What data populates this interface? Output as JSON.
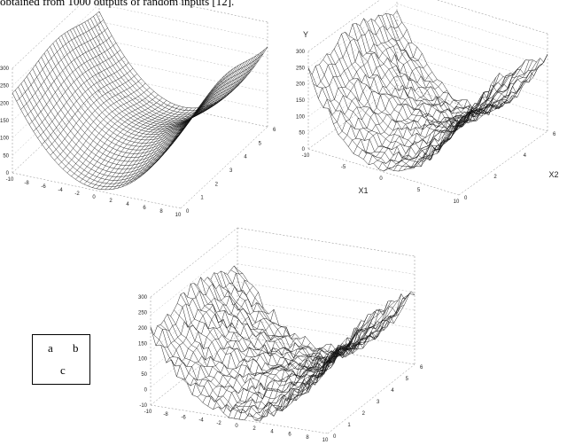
{
  "caption_text": "obtained from 1000 outputs of random inputs [12].",
  "panel_labels": [
    "a",
    "b",
    "c"
  ],
  "chart_data": [
    {
      "type": "surface",
      "panel": "a",
      "z_ticks": [
        "300",
        "250",
        "200",
        "150",
        "100",
        "50",
        "0"
      ],
      "x1_ticks": [
        "-10",
        "-8",
        "-6",
        "-4",
        "-2",
        "0",
        "2",
        "4",
        "6",
        "8",
        "10"
      ],
      "x2_ticks": [
        "0",
        "1",
        "2",
        "3",
        "4",
        "5",
        "6"
      ],
      "x1_range": [
        -10,
        10
      ],
      "x2_range": [
        0,
        6
      ],
      "z_range": [
        0,
        300
      ]
    },
    {
      "type": "surface",
      "panel": "b",
      "ylabel": "Y",
      "x1label": "X1",
      "x2label": "X2",
      "z_ticks": [
        "300",
        "250",
        "200",
        "150",
        "100",
        "50",
        "0"
      ],
      "x1_ticks": [
        "-10",
        "-5",
        "0",
        "5",
        "10"
      ],
      "x2_ticks": [
        "0",
        "2",
        "4",
        "6"
      ],
      "x1_range": [
        -10,
        10
      ],
      "x2_range": [
        0,
        6
      ],
      "z_range": [
        0,
        300
      ]
    },
    {
      "type": "surface",
      "panel": "c",
      "z_ticks": [
        "300",
        "250",
        "200",
        "150",
        "100",
        "50",
        "0",
        "-10"
      ],
      "x1_ticks": [
        "-10",
        "-8",
        "-6",
        "-4",
        "-2",
        "0",
        "2",
        "4",
        "6",
        "8",
        "10"
      ],
      "x2_ticks": [
        "0",
        "1",
        "2",
        "3",
        "4",
        "5",
        "6"
      ],
      "x1_range": [
        -10,
        10
      ],
      "x2_range": [
        0,
        6
      ],
      "z_range": [
        0,
        300
      ]
    }
  ]
}
